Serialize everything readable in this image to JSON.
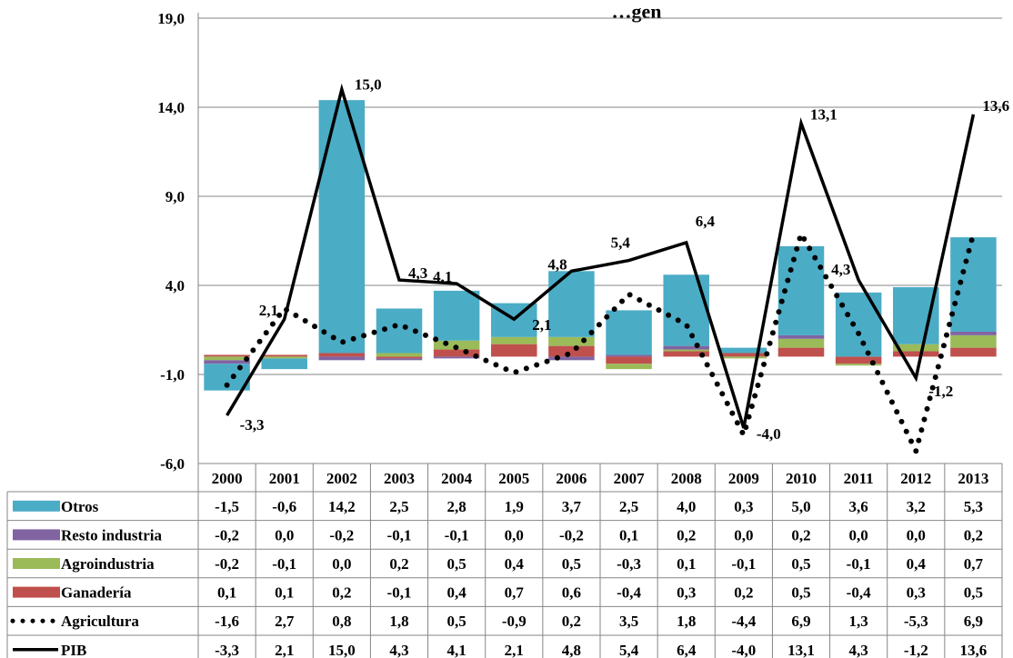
{
  "chart_data": {
    "type": "bar",
    "title": "…gen",
    "years": [
      "2000",
      "2001",
      "2002",
      "2003",
      "2004",
      "2005",
      "2006",
      "2007",
      "2008",
      "2009",
      "2010",
      "2011",
      "2012",
      "2013"
    ],
    "ylim": [
      -6,
      19
    ],
    "yticks": [
      "19,0",
      "14,0",
      "9,0",
      "4,0",
      "-1,0",
      "-6,0"
    ],
    "ytick_values": [
      19,
      14,
      9,
      4,
      -1,
      -6
    ],
    "grid": true,
    "stacked_series": [
      {
        "name": "Otros",
        "color": "#4BACC6",
        "values": [
          -1.5,
          -0.6,
          14.2,
          2.5,
          2.8,
          1.9,
          3.7,
          2.5,
          4.0,
          0.3,
          5.0,
          3.6,
          3.2,
          5.3
        ],
        "labels": [
          "-1,5",
          "-0,6",
          "14,2",
          "2,5",
          "2,8",
          "1,9",
          "3,7",
          "2,5",
          "4,0",
          "0,3",
          "5,0",
          "3,6",
          "3,2",
          "5,3"
        ]
      },
      {
        "name": "Resto industria",
        "color": "#8064A2",
        "values": [
          -0.2,
          0.0,
          -0.2,
          -0.1,
          -0.1,
          0.0,
          -0.2,
          0.1,
          0.2,
          0.0,
          0.2,
          0.0,
          0.0,
          0.2
        ],
        "labels": [
          "-0,2",
          "0,0",
          "-0,2",
          "-0,1",
          "-0,1",
          "0,0",
          "-0,2",
          "0,1",
          "0,2",
          "0,0",
          "0,2",
          "0,0",
          "0,0",
          "0,2"
        ]
      },
      {
        "name": "Agroindustria",
        "color": "#9BBB59",
        "values": [
          -0.2,
          -0.1,
          0.0,
          0.2,
          0.5,
          0.4,
          0.5,
          -0.3,
          0.1,
          -0.1,
          0.5,
          -0.1,
          0.4,
          0.7
        ],
        "labels": [
          "-0,2",
          "-0,1",
          "0,0",
          "0,2",
          "0,5",
          "0,4",
          "0,5",
          "-0,3",
          "0,1",
          "-0,1",
          "0,5",
          "-0,1",
          "0,4",
          "0,7"
        ]
      },
      {
        "name": "Ganadería",
        "color": "#C0504D",
        "values": [
          0.1,
          0.1,
          0.2,
          -0.1,
          0.4,
          0.7,
          0.6,
          -0.4,
          0.3,
          0.2,
          0.5,
          -0.4,
          0.3,
          0.5
        ],
        "labels": [
          "0,1",
          "0,1",
          "0,2",
          "-0,1",
          "0,4",
          "0,7",
          "0,6",
          "-0,4",
          "0,3",
          "0,2",
          "0,5",
          "-0,4",
          "0,3",
          "0,5"
        ]
      }
    ],
    "line_series": [
      {
        "name": "Agricultura",
        "style": "dotted",
        "color": "#000000",
        "values": [
          -1.6,
          2.7,
          0.8,
          1.8,
          0.5,
          -0.9,
          0.2,
          3.5,
          1.8,
          -4.4,
          6.9,
          1.3,
          -5.3,
          6.9
        ],
        "labels": [
          "-1,6",
          "2,7",
          "0,8",
          "1,8",
          "0,5",
          "-0,9",
          "0,2",
          "3,5",
          "1,8",
          "-4,4",
          "6,9",
          "1,3",
          "-5,3",
          "6,9"
        ]
      },
      {
        "name": "PIB",
        "style": "solid",
        "color": "#000000",
        "values": [
          -3.3,
          2.1,
          15.0,
          4.3,
          4.1,
          2.1,
          4.8,
          5.4,
          6.4,
          -4.0,
          13.1,
          4.3,
          -1.2,
          13.6
        ],
        "labels": [
          "-3,3",
          "2,1",
          "15,0",
          "4,3",
          "4,1",
          "2,1",
          "4,8",
          "5,4",
          "6,4",
          "-4,0",
          "13,1",
          "4,3",
          "-1,2",
          "13,6"
        ]
      }
    ]
  }
}
